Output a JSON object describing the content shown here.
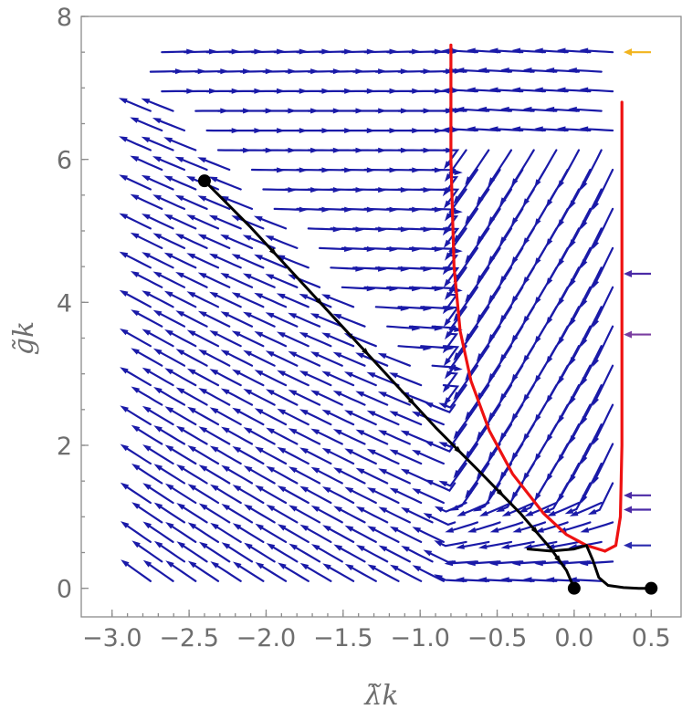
{
  "chart_data": {
    "type": "stream",
    "title": "",
    "xlabel": "λ̃k",
    "ylabel": "g̃k",
    "xlim": [
      -3.2,
      0.7
    ],
    "ylim": [
      -0.4,
      8.0
    ],
    "xticks": [
      -3.0,
      -2.5,
      -2.0,
      -1.5,
      -1.0,
      -0.5,
      0.0,
      0.5
    ],
    "xtick_labels": [
      "−3.0",
      "−2.5",
      "−2.0",
      "−1.5",
      "−1.0",
      "−0.5",
      "0.0",
      "0.5"
    ],
    "yticks": [
      0,
      2,
      4,
      6,
      8
    ],
    "ytick_labels": [
      "0",
      "2",
      "4",
      "6",
      "8"
    ],
    "stream_region": {
      "x": [
        -2.75,
        0.25
      ],
      "y": [
        0.1,
        7.5
      ]
    },
    "series": [
      {
        "kind": "separatrix",
        "color": "#ee1111",
        "branches": [
          {
            "x": [
              -0.8,
              -0.8,
              -0.78,
              -0.74,
              -0.67,
              -0.55,
              -0.4,
              -0.2,
              -0.05,
              0.08,
              0.2
            ],
            "y": [
              7.6,
              6.0,
              4.5,
              3.6,
              2.9,
              2.2,
              1.6,
              1.05,
              0.75,
              0.6,
              0.52
            ]
          },
          {
            "x": [
              0.2,
              0.27,
              0.3,
              0.31,
              0.31,
              0.31
            ],
            "y": [
              0.52,
              0.6,
              1.0,
              2.0,
              4.0,
              6.8
            ]
          }
        ]
      },
      {
        "kind": "trajectory",
        "color": "#000000",
        "branches": [
          {
            "x": [
              -2.4,
              -2.1,
              -1.8,
              -1.5,
              -1.2,
              -0.9,
              -0.6,
              -0.35,
              -0.15,
              -0.05,
              0.0
            ],
            "y": [
              5.7,
              5.05,
              4.35,
              3.65,
              2.95,
              2.25,
              1.6,
              1.05,
              0.55,
              0.25,
              0.0
            ]
          },
          {
            "x": [
              -0.3,
              -0.15,
              0.0,
              0.08,
              0.12,
              0.16,
              0.22,
              0.32,
              0.42,
              0.5
            ],
            "y": [
              0.55,
              0.52,
              0.55,
              0.6,
              0.4,
              0.15,
              0.04,
              0.01,
              0.0,
              0.0
            ]
          }
        ],
        "points": [
          {
            "x": -2.4,
            "y": 5.7
          },
          {
            "x": 0.0,
            "y": 0.0
          },
          {
            "x": 0.5,
            "y": 0.0
          }
        ]
      }
    ],
    "edge_arrows": [
      {
        "y": 7.5,
        "color": "#f2b41e"
      },
      {
        "y": 4.4,
        "color": "#4b2aa6"
      },
      {
        "y": 3.55,
        "color": "#7a3da0"
      },
      {
        "y": 1.3,
        "color": "#4b2aa6"
      },
      {
        "y": 1.1,
        "color": "#4b2aa6"
      },
      {
        "y": 0.6,
        "color": "#2a2aae"
      }
    ],
    "colors": {
      "stream": "#1a1aa8",
      "frame": "#8c8c8c",
      "text": "#6e6e6e"
    }
  }
}
